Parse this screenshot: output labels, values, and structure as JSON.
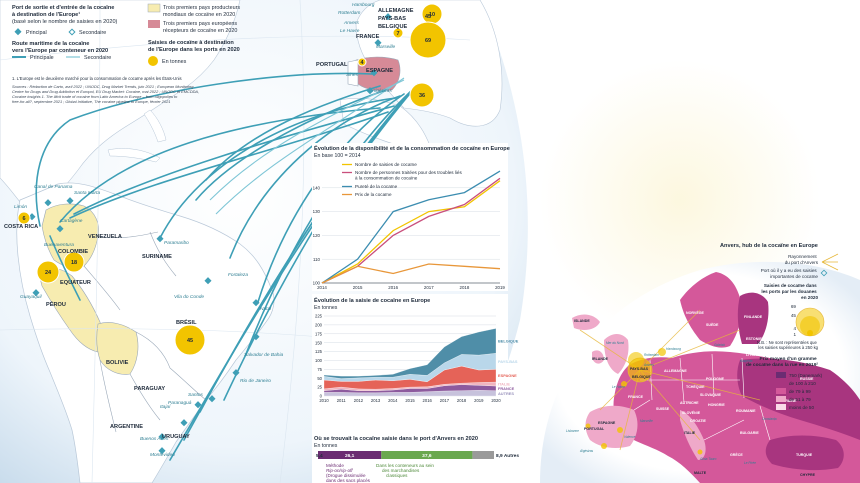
{
  "legend": {
    "port_title": [
      "Port de sortie et d'entrée de la cocaïne",
      "à destination de l'Europe¹",
      "(basé selon le nombre de saisies en 2020)"
    ],
    "port_principal": "Principal",
    "port_secondaire": "Secondaire",
    "route_title": [
      "Route maritime de la cocaïne",
      "vers l'Europe par conteneur en 2020"
    ],
    "route_principale": "Principale",
    "route_secondaire": "Secondaire",
    "producers": [
      "Trois premiers pays producteurs",
      "mondiaux de cocaïne en 2020"
    ],
    "receivers": [
      "Trois premiers pays européens",
      "récepteurs de cocaïne en 2020"
    ],
    "seizures_title": [
      "Saisies de cocaïne à destination",
      "de l'Europe dans les ports en 2020"
    ],
    "seizures_unit": "En tonnes",
    "footnote": "1. L'Europe est le deuxième marché pour la consommation de cocaïne après les États-Unis",
    "sources": [
      "Sources : Rédaction de Carto, avril 2022 ; UNODC, Drug Market Trends, juin 2021 ; European Monitoring",
      "Centre for Drugs and Drug Addiction et Europol, EU Drug Market: Cocaine, mai 2022 ; UNODC et EMCDDA,",
      "Cocaine insights 1. The illicit trade of cocaine from Latin America to Europe – from oligopolies to",
      "free-for-all?, septembre 2021 ; Global Initiative, The cocaine pipeline to Europe, février 2021"
    ]
  },
  "world_map": {
    "countries": [
      {
        "name": "COSTA RICA"
      },
      {
        "name": "COLOMBIE"
      },
      {
        "name": "VENEZUELA"
      },
      {
        "name": "SURINAME"
      },
      {
        "name": "EQUATEUR"
      },
      {
        "name": "PÉROU"
      },
      {
        "name": "BRÉSIL"
      },
      {
        "name": "BOLIVIE"
      },
      {
        "name": "PARAGUAY"
      },
      {
        "name": "ARGENTINE"
      },
      {
        "name": "URUGUAY"
      },
      {
        "name": "ALLEMAGNE"
      },
      {
        "name": "PAYS-BAS"
      },
      {
        "name": "BELGIQUE"
      },
      {
        "name": "FRANCE"
      },
      {
        "name": "PORTUGAL"
      },
      {
        "name": "ESPAGNE"
      }
    ],
    "ports": [
      {
        "name": "Limón"
      },
      {
        "name": "Canal de Panama"
      },
      {
        "name": "Santa Marta"
      },
      {
        "name": "Cartagène"
      },
      {
        "name": "Buenaventura"
      },
      {
        "name": "Guayaquil"
      },
      {
        "name": "Paramaribo"
      },
      {
        "name": "Vila do Conde"
      },
      {
        "name": "Fortaleza"
      },
      {
        "name": "Natal"
      },
      {
        "name": "Salvador de Bahia"
      },
      {
        "name": "Rio de Janeiro"
      },
      {
        "name": "Santos"
      },
      {
        "name": "Paranaguá"
      },
      {
        "name": "Itajaí"
      },
      {
        "name": "Buenos Aires"
      },
      {
        "name": "Montevideo"
      },
      {
        "name": "Hambourg"
      },
      {
        "name": "Rotterdam"
      },
      {
        "name": "Anvers"
      },
      {
        "name": "Le Havre"
      },
      {
        "name": "Marseille"
      },
      {
        "name": "Sines"
      },
      {
        "name": "Algésiras"
      }
    ],
    "seizures": [
      {
        "place": "Limón",
        "value": "6"
      },
      {
        "place": "Colombie",
        "value": "18"
      },
      {
        "place": "Equateur",
        "value": "24"
      },
      {
        "place": "Brésil",
        "value": "45"
      },
      {
        "place": "Hambourg",
        "value": "10"
      },
      {
        "place": "Pays-Bas",
        "value": "45"
      },
      {
        "place": "Belgique",
        "value": "69"
      },
      {
        "place": "France",
        "value": "7"
      },
      {
        "place": "Portugal",
        "value": "4"
      },
      {
        "place": "Espagne",
        "value": "36"
      }
    ]
  },
  "chart_data": [
    {
      "type": "line",
      "title": "Évolution de la disponibilité et de la consommation de cocaïne en Europe",
      "subtitle": "En base 100 = 2014",
      "x": [
        2014,
        2015,
        2016,
        2017,
        2018,
        2019
      ],
      "ylim": [
        100,
        150
      ],
      "yticks": [
        100,
        110,
        120,
        130,
        140
      ],
      "series": [
        {
          "name": "Nombre de saisies de cocaïne",
          "color": "#f2c400",
          "values": [
            100,
            108,
            122,
            130,
            132,
            143
          ]
        },
        {
          "name": "Nombre de personnes traitées pour des troubles liés à la consommation de cocaïne",
          "color": "#c94f7c",
          "values": [
            100,
            107,
            120,
            128,
            133,
            144
          ]
        },
        {
          "name": "Pureté de la cocaïne",
          "color": "#3c8db0",
          "values": [
            100,
            110,
            130,
            135,
            138,
            147
          ]
        },
        {
          "name": "Prix de la cocaïne",
          "color": "#e8973a",
          "values": [
            100,
            107,
            104,
            108,
            107,
            106
          ]
        }
      ],
      "grid": true
    },
    {
      "type": "area",
      "title": "Évolution de la saisie de cocaïne en Europe",
      "subtitle": "En tonnes",
      "x": [
        2010,
        2011,
        2012,
        2013,
        2014,
        2015,
        2016,
        2017,
        2018,
        2019,
        2020
      ],
      "ylim": [
        0,
        225
      ],
      "yticks": [
        0,
        25,
        50,
        75,
        100,
        125,
        150,
        175,
        200,
        225
      ],
      "series": [
        {
          "name": "AUTRES",
          "color": "#c7c2dc",
          "values": [
            10,
            10,
            9,
            9,
            10,
            10,
            12,
            14,
            15,
            16,
            15
          ]
        },
        {
          "name": "FRANCE",
          "color": "#8d5a9e",
          "values": [
            5,
            9,
            6,
            6,
            7,
            11,
            9,
            15,
            17,
            14,
            13
          ]
        },
        {
          "name": "ITALIE",
          "color": "#f0b5c0",
          "values": [
            5,
            6,
            5,
            4,
            4,
            4,
            5,
            4,
            4,
            8,
            11
          ]
        },
        {
          "name": "ESPAGNE",
          "color": "#e56358",
          "values": [
            25,
            16,
            21,
            26,
            22,
            22,
            14,
            40,
            48,
            35,
            36
          ]
        },
        {
          "name": "PAYS-BAS",
          "color": "#b9d7ea",
          "values": [
            10,
            8,
            10,
            8,
            10,
            14,
            18,
            20,
            33,
            42,
            45
          ]
        },
        {
          "name": "BELGIQUE",
          "color": "#4f8ea8",
          "values": [
            4,
            7,
            5,
            5,
            8,
            16,
            30,
            45,
            50,
            65,
            70
          ]
        }
      ],
      "grid": true
    },
    {
      "type": "bar",
      "title": "Où se trouvait la cocaïne saisie dans le port d'Anvers en 2020",
      "subtitle": "En tonnes",
      "categories": [
        "Méthode Rip-on/rip-off (Drogue dissimulée dans des sacs placés",
        "Dans les conteneurs au sein des marchandises classiques",
        "Autres"
      ],
      "values": [
        26.1,
        37.6,
        8.9
      ],
      "labels": [
        "26,1",
        "37,6",
        "8,9 Autres"
      ],
      "colors": [
        "#6b2c72",
        "#6aa84f",
        "#9a9a9a"
      ],
      "small_value_label": "5,4",
      "method_label": [
        "Méthode",
        "Rip-on/rip-off",
        "(Drogue dissimulée",
        "dans des sacs placés"
      ],
      "cargo_label": [
        "Dans les conteneurs au sein",
        "des marchandises",
        "classiques"
      ]
    }
  ],
  "europe_panel": {
    "title": "Anvers, hub de la cocaïne en Europe",
    "rayonnement": [
      "Rayonnement",
      "du port d'Anvers"
    ],
    "port_legend": [
      "Port où il y a eu des saisies",
      "importantes de cocaïne"
    ],
    "seizures_legend": [
      "Saisies de cocaïne dans",
      "les ports par les douanes",
      "en 2020"
    ],
    "circle_values": [
      "69",
      "45",
      "4",
      "1"
    ],
    "nb_note": [
      "N.B. : Ne sont représentées que",
      "les saisies supérieures à 250 kg"
    ],
    "price_title": [
      "Prix moyen d'un gramme",
      "de cocaïne dans la rue en 2019²"
    ],
    "price_classes": [
      {
        "label": "750 (Danemark)",
        "color": "#6b2c72"
      },
      {
        "label": "de 100 à 210",
        "color": "#a8357f"
      },
      {
        "label": "de 79 à 99",
        "color": "#d4589a"
      },
      {
        "label": "de 51 à 79",
        "color": "#efa9c9"
      },
      {
        "label": "moins de 50",
        "color": "#fadbe8"
      }
    ],
    "country_labels": [
      "ISLANDE",
      "FINLANDE",
      "SUÈDE",
      "NORVÈGE",
      "ESTONIE",
      "LETTONIE",
      "LITUANIE",
      "IRLANDE",
      "DANEMARK",
      "PAYS-BAS",
      "BELGIQUE",
      "ALLEMAGNE",
      "POLOGNE",
      "TCHÉQUIE",
      "SLOVAQUIE",
      "HONGRIE",
      "AUTRICHE",
      "SUISSE",
      "FRANCE",
      "SLOVÉNIE",
      "CROATIE",
      "ROUMANIE",
      "BULGARIE",
      "PORTUGAL",
      "ESPAGNE",
      "ITALIE",
      "GRÈCE",
      "TURQUIE",
      "CHYPRE",
      "MALTE",
      "RUSSIE",
      "UKRAINE"
    ],
    "port_labels": [
      "Mer du Nord",
      "Rotterdam",
      "Anvers",
      "Hambourg",
      "Gdańsk",
      "Le Havre",
      "Marseille",
      "Lisbonne",
      "Algésiras",
      "Valence",
      "Gioia Tauro",
      "Le Pirée",
      "Constanța",
      "Klaipėda"
    ]
  }
}
